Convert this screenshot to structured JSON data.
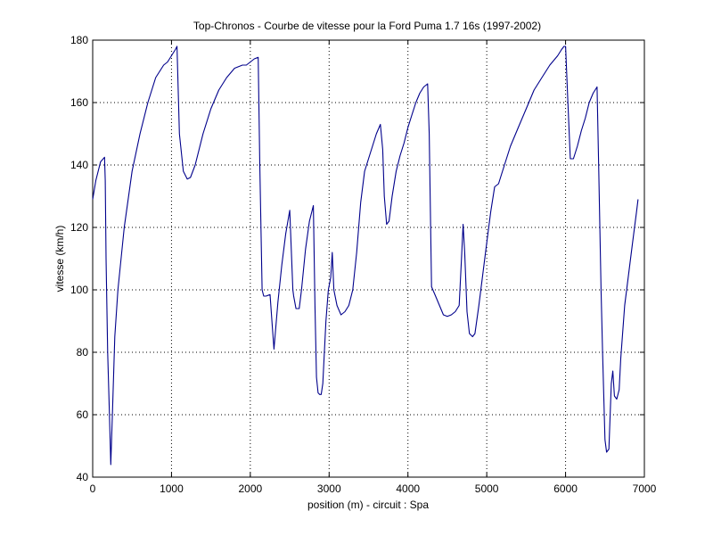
{
  "chart_data": {
    "type": "line",
    "title": "Top-Chronos - Courbe de vitesse pour la Ford Puma 1.7 16s (1997-2002)",
    "xlabel": "position (m) - circuit : Spa",
    "ylabel": "vitesse (km/h)",
    "xlim": [
      0,
      7000
    ],
    "ylim": [
      40,
      180
    ],
    "xticks": [
      0,
      1000,
      2000,
      3000,
      4000,
      5000,
      6000,
      7000
    ],
    "yticks": [
      40,
      60,
      80,
      100,
      120,
      140,
      160,
      180
    ],
    "xtick_labels": [
      "0",
      "1000",
      "2000",
      "3000",
      "4000",
      "5000",
      "6000",
      "7000"
    ],
    "ytick_labels": [
      "40",
      "60",
      "80",
      "100",
      "120",
      "140",
      "160",
      "180"
    ],
    "grid": true,
    "series": [
      {
        "color": "#00008b",
        "x": [
          0,
          40,
          100,
          150,
          160,
          170,
          190,
          210,
          230,
          250,
          280,
          320,
          400,
          500,
          600,
          700,
          800,
          900,
          950,
          1000,
          1050,
          1070,
          1100,
          1150,
          1200,
          1240,
          1300,
          1400,
          1500,
          1600,
          1700,
          1800,
          1900,
          1950,
          2000,
          2050,
          2100,
          2120,
          2150,
          2170,
          2200,
          2250,
          2280,
          2300,
          2350,
          2400,
          2450,
          2500,
          2540,
          2550,
          2580,
          2620,
          2650,
          2700,
          2750,
          2800,
          2820,
          2840,
          2860,
          2880,
          2900,
          2920,
          2960,
          2990,
          3020,
          3040,
          3060,
          3100,
          3150,
          3200,
          3250,
          3300,
          3350,
          3400,
          3450,
          3500,
          3550,
          3600,
          3650,
          3680,
          3700,
          3730,
          3760,
          3800,
          3850,
          3900,
          3950,
          4000,
          4050,
          4100,
          4150,
          4200,
          4250,
          4270,
          4300,
          4350,
          4400,
          4450,
          4500,
          4550,
          4600,
          4650,
          4680,
          4700,
          4720,
          4750,
          4780,
          4820,
          4850,
          4900,
          4950,
          5000,
          5050,
          5100,
          5150,
          5200,
          5300,
          5400,
          5500,
          5600,
          5700,
          5800,
          5900,
          5950,
          5980,
          6000,
          6030,
          6060,
          6100,
          6150,
          6200,
          6250,
          6300,
          6350,
          6400,
          6420,
          6450,
          6470,
          6500,
          6520,
          6550,
          6580,
          6600,
          6620,
          6650,
          6680,
          6700,
          6750,
          6800,
          6850,
          6900,
          6920
        ],
        "y": [
          129,
          135,
          141,
          142.5,
          135,
          110,
          80,
          62,
          44,
          60,
          85,
          100,
          120,
          138,
          150,
          160,
          168,
          172,
          173,
          175,
          177,
          178,
          150,
          138,
          135.5,
          136,
          140,
          150,
          158,
          164,
          168,
          171,
          172,
          172,
          173,
          174,
          174.5,
          140,
          100,
          98,
          98,
          98.5,
          88,
          81,
          96,
          108,
          118,
          125.5,
          100,
          98,
          94,
          94,
          100,
          113,
          122,
          127,
          95,
          72,
          67,
          66.5,
          66.5,
          70,
          90,
          100,
          104,
          112,
          100,
          95,
          92,
          93,
          95,
          100,
          112,
          128,
          138,
          142,
          146,
          150,
          153,
          145,
          130,
          121,
          122,
          130,
          138,
          143,
          147,
          152,
          156,
          160,
          163,
          165,
          166,
          150,
          101,
          98,
          95,
          92,
          91.5,
          92,
          93,
          95,
          110,
          121,
          112,
          93,
          86,
          85,
          86,
          95,
          105,
          115,
          125,
          133,
          134,
          138,
          146,
          152,
          158,
          164,
          168,
          172,
          175,
          177,
          178,
          178,
          160,
          142,
          142,
          146,
          151,
          155,
          160,
          163,
          165,
          140,
          100,
          80,
          52,
          48,
          49,
          70,
          74,
          66,
          65,
          68,
          78,
          95,
          105,
          115,
          125,
          129
        ]
      }
    ]
  }
}
